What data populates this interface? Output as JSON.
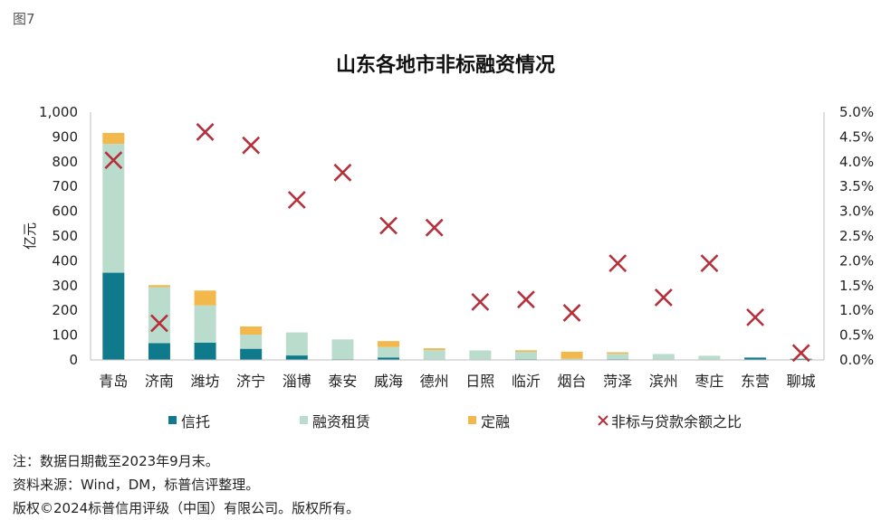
{
  "figure_label": "图7",
  "chart_data": {
    "type": "bar",
    "stacked": true,
    "title": "山东各地市非标融资情况",
    "ylabel": "亿元",
    "ylim": [
      0,
      1000
    ],
    "y_ticks": [
      "0",
      "100",
      "200",
      "300",
      "400",
      "500",
      "600",
      "700",
      "800",
      "900",
      "1,000"
    ],
    "y2lim": [
      0,
      5.0
    ],
    "y2_ticks": [
      "0.0%",
      "0.5%",
      "1.0%",
      "1.5%",
      "2.0%",
      "2.5%",
      "3.0%",
      "3.5%",
      "4.0%",
      "4.5%",
      "5.0%"
    ],
    "categories": [
      "青岛",
      "济南",
      "潍坊",
      "济宁",
      "淄博",
      "泰安",
      "威海",
      "德州",
      "日照",
      "临沂",
      "烟台",
      "菏泽",
      "滨州",
      "枣庄",
      "东营",
      "聊城"
    ],
    "series": [
      {
        "name": "信托",
        "color": "#0e7a8c",
        "axis": "left",
        "kind": "bar",
        "values": [
          352,
          68,
          70,
          45,
          18,
          3,
          10,
          2,
          2,
          3,
          1,
          3,
          2,
          2,
          9,
          4
        ]
      },
      {
        "name": "融资租赁",
        "color": "#b9dccd",
        "axis": "left",
        "kind": "bar",
        "values": [
          520,
          226,
          150,
          57,
          93,
          80,
          42,
          38,
          36,
          30,
          4,
          22,
          22,
          15,
          2,
          3
        ]
      },
      {
        "name": "定融",
        "color": "#f2b84b",
        "axis": "left",
        "kind": "bar",
        "values": [
          44,
          8,
          60,
          33,
          0,
          0,
          24,
          7,
          0,
          6,
          28,
          6,
          0,
          0,
          0,
          0
        ]
      },
      {
        "name": "非标与贷款余额之比",
        "color": "#b5303a",
        "axis": "right",
        "kind": "marker",
        "values": [
          4.03,
          0.74,
          4.6,
          4.33,
          3.23,
          3.78,
          2.71,
          2.67,
          1.17,
          1.22,
          0.95,
          1.95,
          1.26,
          1.95,
          0.86,
          0.14
        ]
      }
    ],
    "legend": "bottom",
    "grid": false
  },
  "notes": [
    "注：数据日期截至2023年9月末。",
    "资料来源：Wind，DM，标普信评整理。",
    "版权©2024标普信用评级（中国）有限公司。版权所有。"
  ]
}
